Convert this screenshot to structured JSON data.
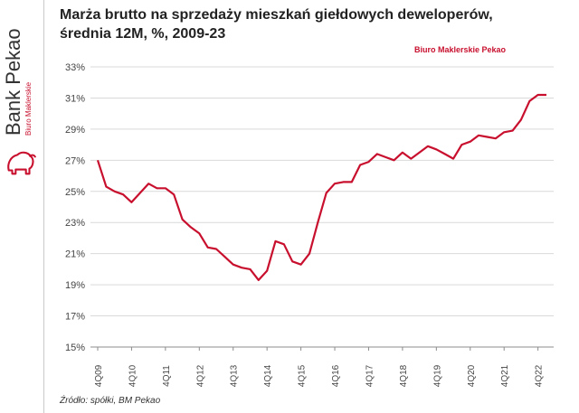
{
  "header": {
    "title_line1": "Marża brutto na sprzedaży mieszkań giełdowych deweloperów,",
    "title_line2": "średnia 12M, %, 2009-23"
  },
  "brand": {
    "name": "Bank Pekao",
    "subtitle": "Biuro Maklerskie",
    "watermark": "Biuro Maklerskie Pekao",
    "accent_color": "#c8102e"
  },
  "footer": {
    "source": "Źródło: spółki, BM Pekao"
  },
  "chart_data": {
    "type": "line",
    "title": "Marża brutto na sprzedaży mieszkań giełdowych deweloperów, średnia 12M, %, 2009-23",
    "xlabel": "",
    "ylabel": "",
    "ylim": [
      15,
      33
    ],
    "yticks": [
      "15%",
      "17%",
      "19%",
      "21%",
      "23%",
      "25%",
      "27%",
      "29%",
      "31%",
      "33%"
    ],
    "grid": "horizontal",
    "legend": "none",
    "line_color": "#c8102e",
    "categories": [
      "4Q09",
      "1Q10",
      "2Q10",
      "3Q10",
      "4Q10",
      "1Q11",
      "2Q11",
      "3Q11",
      "4Q11",
      "1Q12",
      "2Q12",
      "3Q12",
      "4Q12",
      "1Q13",
      "2Q13",
      "3Q13",
      "4Q13",
      "1Q14",
      "2Q14",
      "3Q14",
      "4Q14",
      "1Q15",
      "2Q15",
      "3Q15",
      "4Q15",
      "1Q16",
      "2Q16",
      "3Q16",
      "4Q16",
      "1Q17",
      "2Q17",
      "3Q17",
      "4Q17",
      "1Q18",
      "2Q18",
      "3Q18",
      "4Q18",
      "1Q19",
      "2Q19",
      "3Q19",
      "4Q19",
      "1Q20",
      "2Q20",
      "3Q20",
      "4Q20",
      "1Q21",
      "2Q21",
      "3Q21",
      "4Q21",
      "1Q22",
      "2Q22",
      "3Q22",
      "4Q22",
      "1Q23"
    ],
    "xtick_labels": [
      "4Q09",
      "4Q10",
      "4Q11",
      "4Q12",
      "4Q13",
      "4Q14",
      "4Q15",
      "4Q16",
      "4Q17",
      "4Q18",
      "4Q19",
      "4Q20",
      "4Q21",
      "4Q22"
    ],
    "series": [
      {
        "values": [
          27.0,
          25.3,
          25.0,
          24.8,
          24.3,
          24.9,
          25.5,
          25.2,
          25.2,
          24.8,
          23.2,
          22.7,
          22.3,
          21.4,
          21.3,
          20.8,
          20.3,
          20.1,
          20.0,
          19.3,
          19.9,
          21.8,
          21.6,
          20.5,
          20.3,
          21.0,
          23.0,
          24.9,
          25.5,
          25.6,
          25.6,
          26.7,
          26.9,
          27.4,
          27.2,
          27.0,
          27.5,
          27.1,
          27.5,
          27.9,
          27.7,
          27.4,
          27.1,
          28.0,
          28.2,
          28.6,
          28.5,
          28.4,
          28.8,
          28.9,
          29.6,
          30.8,
          31.2,
          31.2
        ]
      }
    ]
  }
}
